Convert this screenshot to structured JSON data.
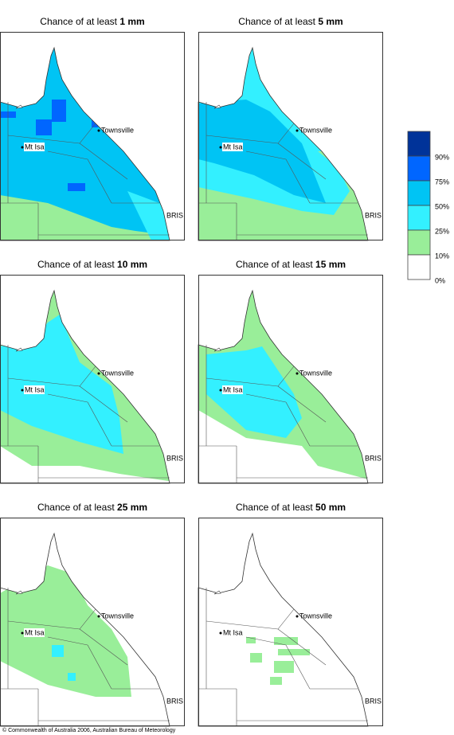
{
  "panels": [
    {
      "title": "Chance of at least",
      "amount": "1 mm"
    },
    {
      "title": "Chance of at least",
      "amount": "5 mm"
    },
    {
      "title": "Chance of at least",
      "amount": "10 mm"
    },
    {
      "title": "Chance of at least",
      "amount": "15 mm"
    },
    {
      "title": "Chance of at least",
      "amount": "25 mm"
    },
    {
      "title": "Chance of at least",
      "amount": "50 mm"
    }
  ],
  "places": [
    "Townsville",
    "Mt Isa",
    "BRIS"
  ],
  "legend": [
    {
      "label": "90%",
      "color": "#003399"
    },
    {
      "label": "75%",
      "color": "#0066ff"
    },
    {
      "label": "50%",
      "color": "#00c4f4"
    },
    {
      "label": "25%",
      "color": "#33f0ff"
    },
    {
      "label": "10%",
      "color": "#99ee99"
    },
    {
      "label": "0%",
      "color": "#ffffff"
    }
  ],
  "copyright": "© Commonwealth of Australia 2006, Australian Bureau of Meteorology"
}
